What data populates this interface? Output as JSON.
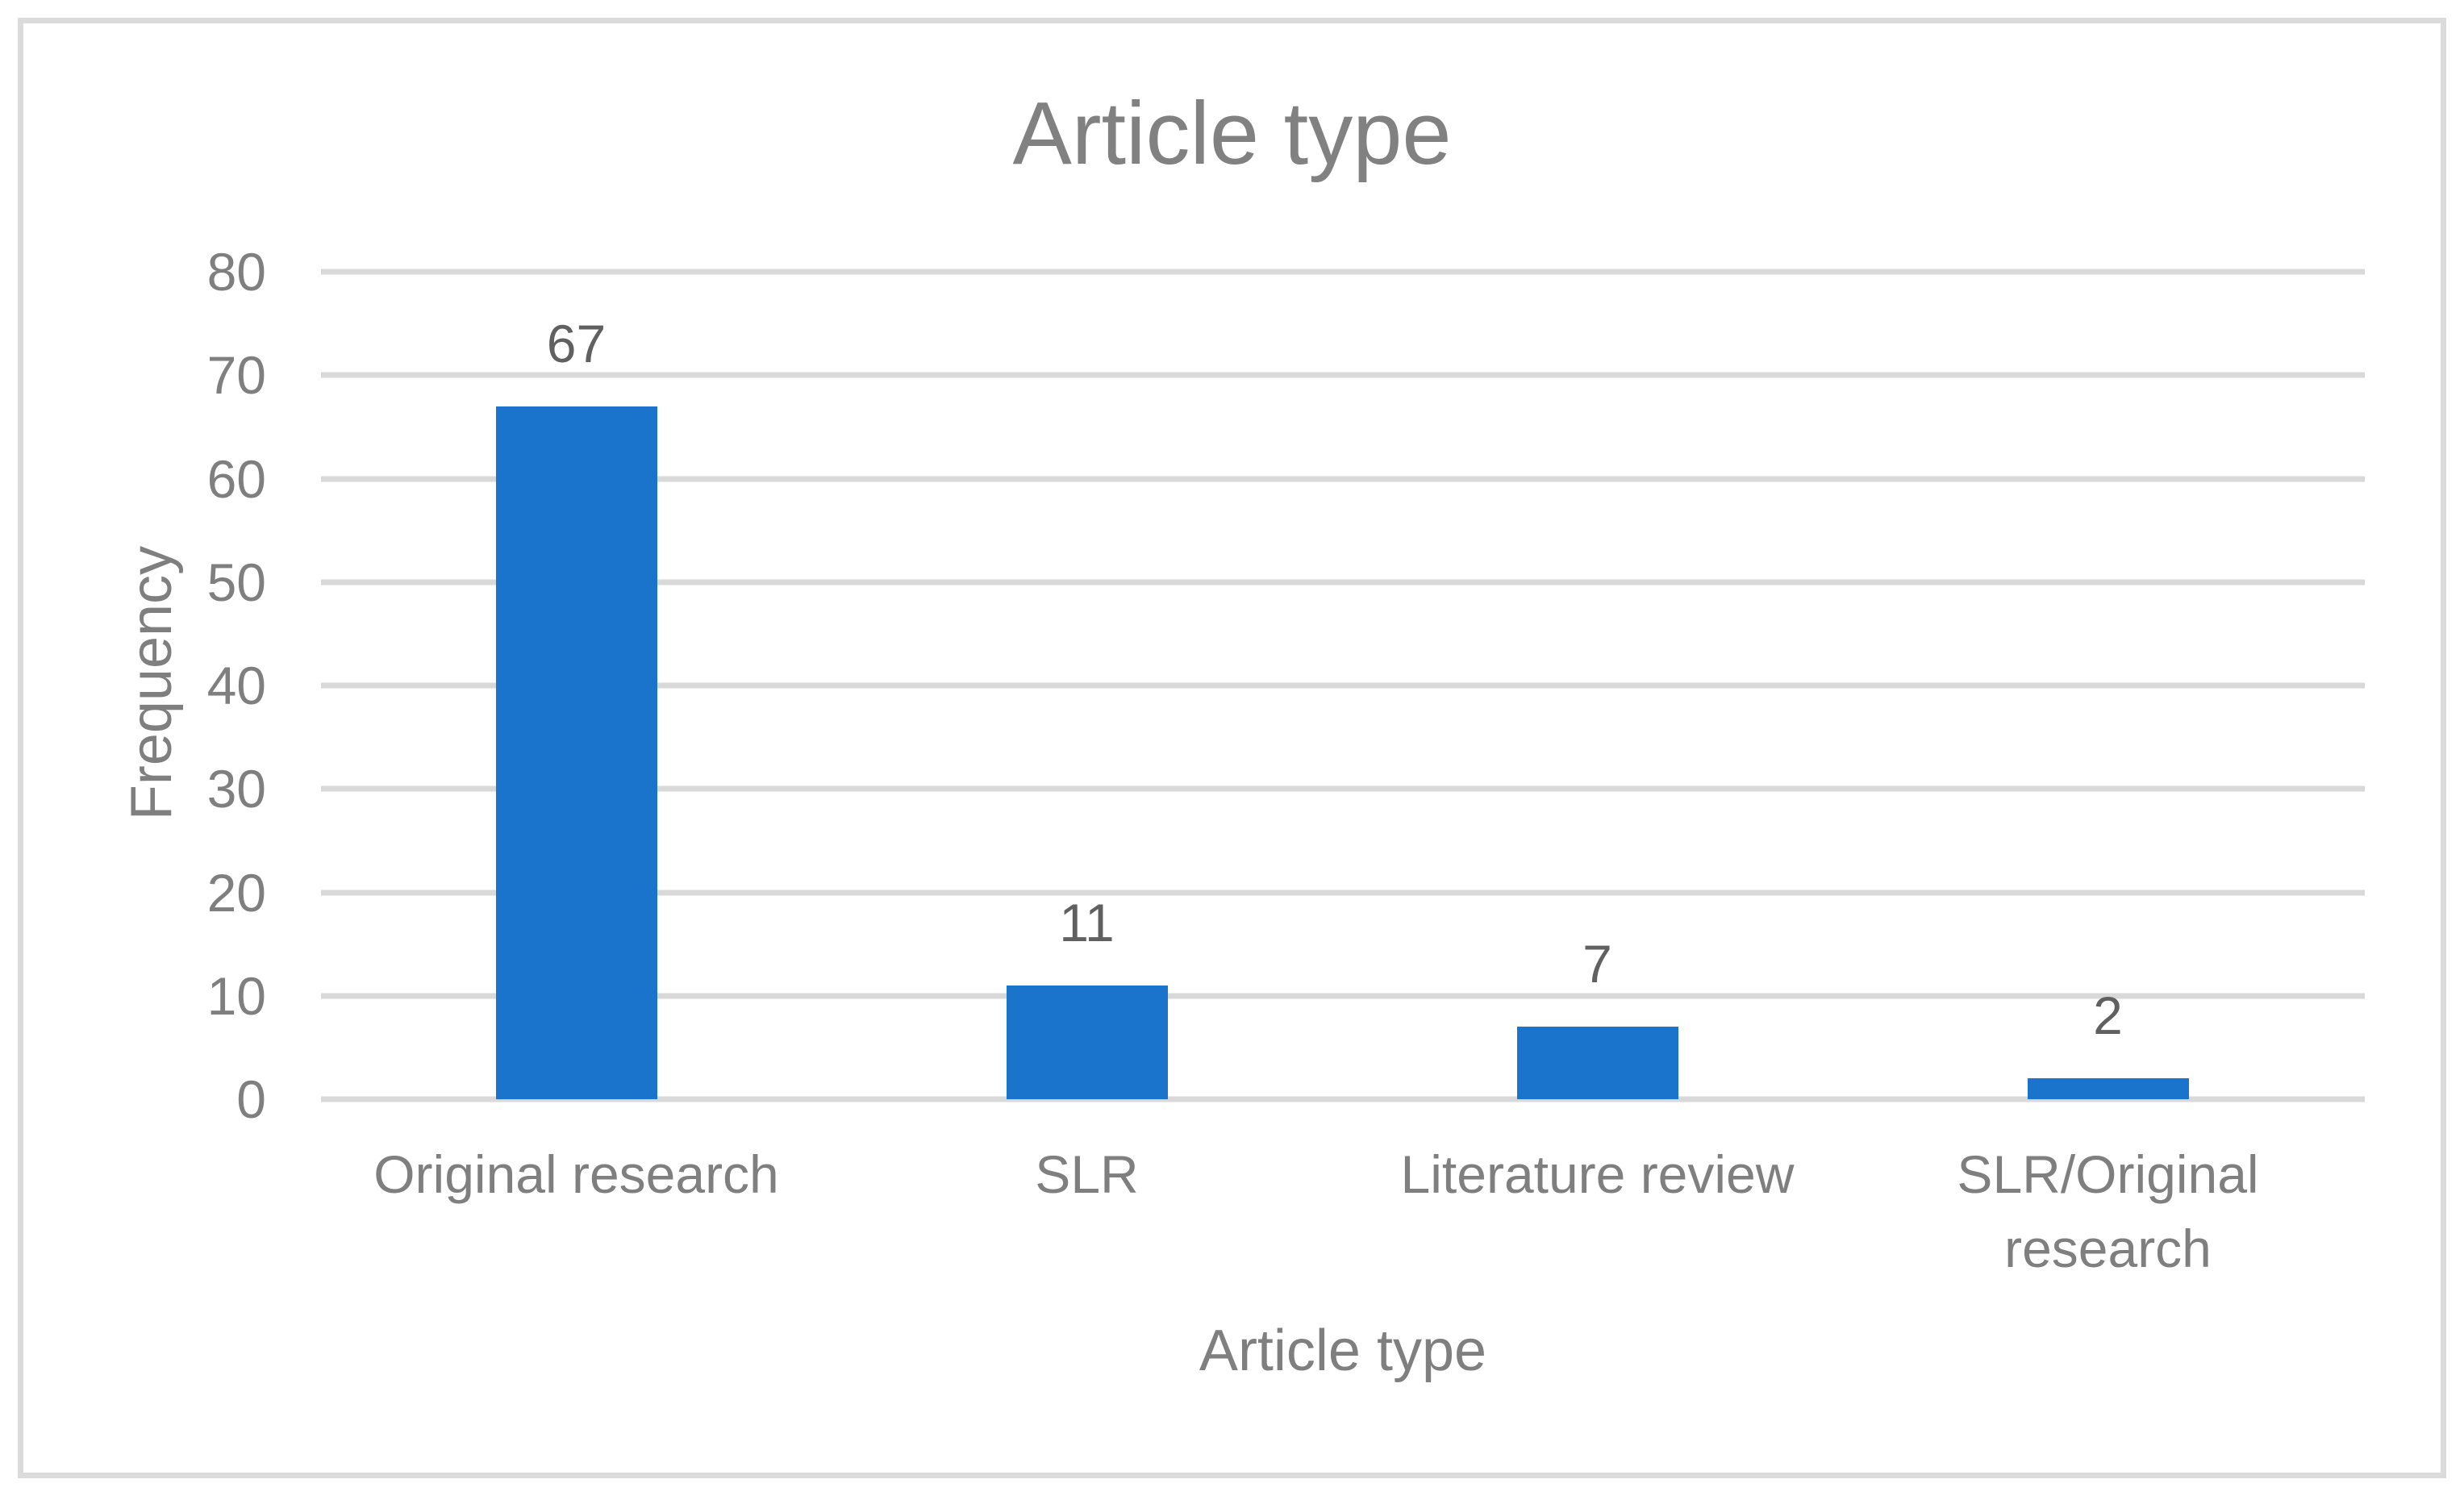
{
  "chart_data": {
    "type": "bar",
    "title": "Article type",
    "xlabel": "Article type",
    "ylabel": "Frequency",
    "categories": [
      "Original research",
      "SLR",
      "Literature review",
      "SLR/Original research"
    ],
    "values": [
      67,
      11,
      7,
      2
    ],
    "data_labels": [
      "67",
      "11",
      "7",
      "2"
    ],
    "yticks": [
      0,
      10,
      20,
      30,
      40,
      50,
      60,
      70,
      80
    ],
    "ylim": [
      0,
      80
    ],
    "grid": "horizontal",
    "legend": "none",
    "colors": {
      "bar": "#1A74CB",
      "gridline": "#D9D9D9",
      "chart_border": "#DBDBDB",
      "title_text": "#818181",
      "axis_text": "#7F7F7F",
      "data_label_text": "#606060",
      "background": "#FFFFFF"
    }
  }
}
